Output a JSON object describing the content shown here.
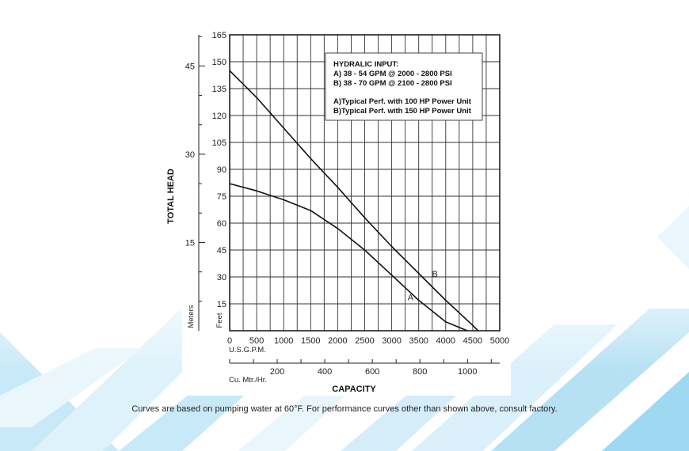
{
  "chart_data": {
    "type": "line",
    "ylabel": "TOTAL HEAD",
    "xlabel": "CAPACITY",
    "feet_axis": {
      "label": "Feet",
      "range": [
        0,
        165
      ],
      "ticks": [
        "15",
        "30",
        "45",
        "60",
        "75",
        "90",
        "105",
        "120",
        "135",
        "150",
        "165"
      ]
    },
    "meters_axis": {
      "label": "Meters",
      "ticks": [
        {
          "value": 15,
          "label": "15"
        },
        {
          "value": 30,
          "label": "30"
        },
        {
          "value": 45,
          "label": "45"
        }
      ]
    },
    "gpm_axis": {
      "label": "U.S.G.P.M.",
      "range": [
        0,
        5000
      ],
      "ticks": [
        "0",
        "500",
        "1000",
        "1500",
        "2000",
        "2500",
        "3000",
        "3500",
        "4000",
        "4500",
        "5000"
      ]
    },
    "cumh_axis": {
      "label": "Cu. Mtr./Hr.",
      "ticks": [
        {
          "value": 200,
          "label": "200"
        },
        {
          "value": 400,
          "label": "400"
        },
        {
          "value": 600,
          "label": "600"
        },
        {
          "value": 800,
          "label": "800"
        },
        {
          "value": 1000,
          "label": "1000"
        }
      ]
    },
    "grid": true,
    "series": [
      {
        "name": "A",
        "x": [
          0,
          500,
          1000,
          1500,
          2000,
          2500,
          3000,
          3500,
          4000,
          4400
        ],
        "y": [
          82,
          78,
          73,
          67,
          57,
          45,
          31,
          17,
          5,
          0
        ]
      },
      {
        "name": "B",
        "x": [
          0,
          500,
          1000,
          1500,
          2000,
          2500,
          3000,
          3500,
          4000,
          4500,
          4600
        ],
        "y": [
          145,
          130,
          113,
          96,
          80,
          63,
          47,
          32,
          17,
          3,
          0
        ]
      }
    ],
    "curve_labels": [
      {
        "name": "B",
        "x": 3800,
        "y": 30
      },
      {
        "name": "A",
        "x": 3350,
        "y": 17
      }
    ],
    "legend": {
      "position": "top-right",
      "lines": [
        "HYDRALIC INPUT:",
        "A) 38 - 54 GPM @  2000 - 2800 PSI",
        "B) 38 - 70 GPM @  2100 - 2800 PSI",
        "",
        "A)Typical Perf. with 100 HP Power Unit",
        "B)Typical Perf. with 150 HP Power Unit"
      ]
    }
  },
  "caption": "Curves are based on pumping water at 60°F. For performance curves other than shown above, consult factory.",
  "background_colors": [
    "#bfe6f7",
    "#8ed2ef",
    "#e6f6fd"
  ]
}
